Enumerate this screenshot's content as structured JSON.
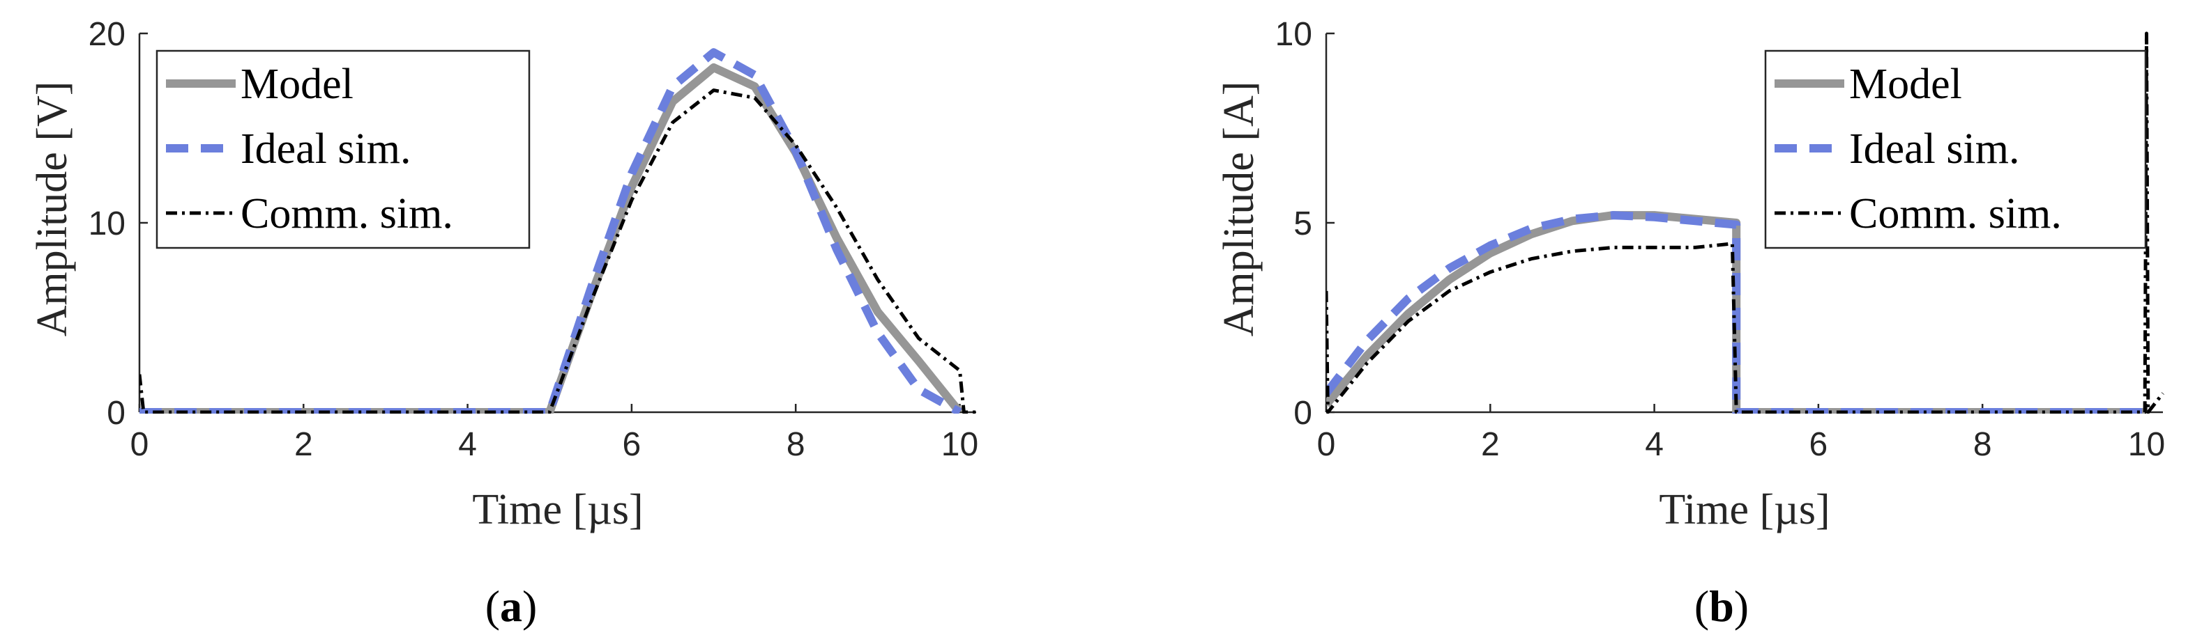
{
  "colors": {
    "model": "#969696",
    "ideal": "#6b7fdd",
    "comm": "#000000",
    "axis": "#262626"
  },
  "chart_data": [
    {
      "type": "line",
      "caption": {
        "open": "(",
        "letter": "a",
        "close": ")"
      },
      "xlabel": "Time [µs]",
      "ylabel": "Amplitude [V]",
      "xlim": [
        0,
        10.2
      ],
      "ylim": [
        0,
        20
      ],
      "xticks": [
        0,
        2,
        4,
        6,
        8,
        10
      ],
      "yticks": [
        0,
        10,
        20
      ],
      "grid": false,
      "legend_position": "top-left",
      "series": [
        {
          "name": "Model",
          "style": "solid",
          "points": [
            [
              0,
              0
            ],
            [
              5,
              0
            ],
            [
              5.5,
              6.1
            ],
            [
              6,
              11.9
            ],
            [
              6.5,
              16.4
            ],
            [
              7,
              18.2
            ],
            [
              7.5,
              17.2
            ],
            [
              8,
              13.7
            ],
            [
              8.5,
              9.2
            ],
            [
              9,
              5.3
            ],
            [
              9.5,
              2.7
            ],
            [
              10,
              0
            ]
          ]
        },
        {
          "name": "Ideal sim.",
          "style": "dashed",
          "points": [
            [
              0,
              0
            ],
            [
              5,
              0
            ],
            [
              5.5,
              6.5
            ],
            [
              6,
              12.6
            ],
            [
              6.5,
              17.2
            ],
            [
              7,
              19
            ],
            [
              7.5,
              17.8
            ],
            [
              8,
              13.8
            ],
            [
              8.5,
              8.6
            ],
            [
              9,
              4.2
            ],
            [
              9.5,
              1.2
            ],
            [
              10,
              0
            ]
          ]
        },
        {
          "name": "Comm. sim.",
          "style": "dashdot",
          "points": [
            [
              0,
              2
            ],
            [
              0.05,
              0
            ],
            [
              5,
              0
            ],
            [
              5.5,
              5.8
            ],
            [
              6,
              11.2
            ],
            [
              6.5,
              15.3
            ],
            [
              7,
              17
            ],
            [
              7.5,
              16.6
            ],
            [
              8,
              14.1
            ],
            [
              8.5,
              10.8
            ],
            [
              9,
              7
            ],
            [
              9.5,
              3.9
            ],
            [
              10,
              2.2
            ],
            [
              10.05,
              0
            ],
            [
              10.2,
              0
            ]
          ]
        }
      ]
    },
    {
      "type": "line",
      "caption": {
        "open": "(",
        "letter": "b",
        "close": ")"
      },
      "xlabel": "Time [µs]",
      "ylabel": "Amplitude [A]",
      "xlim": [
        0,
        10.2
      ],
      "ylim": [
        0,
        10
      ],
      "xticks": [
        0,
        2,
        4,
        6,
        8,
        10
      ],
      "yticks": [
        0,
        5,
        10
      ],
      "grid": false,
      "legend_position": "top-right",
      "series": [
        {
          "name": "Model",
          "style": "solid",
          "points": [
            [
              0,
              0.2
            ],
            [
              0.5,
              1.5
            ],
            [
              1,
              2.6
            ],
            [
              1.5,
              3.5
            ],
            [
              2,
              4.2
            ],
            [
              2.5,
              4.7
            ],
            [
              3,
              5.05
            ],
            [
              3.5,
              5.2
            ],
            [
              4,
              5.2
            ],
            [
              4.5,
              5.1
            ],
            [
              5,
              5
            ],
            [
              5,
              0
            ],
            [
              10,
              0
            ]
          ]
        },
        {
          "name": "Ideal sim.",
          "style": "dashed",
          "points": [
            [
              0,
              0.5
            ],
            [
              0.5,
              1.9
            ],
            [
              1,
              3
            ],
            [
              1.5,
              3.8
            ],
            [
              2,
              4.4
            ],
            [
              2.5,
              4.85
            ],
            [
              3,
              5.1
            ],
            [
              3.5,
              5.2
            ],
            [
              4,
              5.15
            ],
            [
              4.5,
              5.05
            ],
            [
              5,
              4.95
            ],
            [
              5,
              0
            ],
            [
              10,
              0
            ]
          ]
        },
        {
          "name": "Comm. sim.",
          "style": "dashdot",
          "points": [
            [
              0,
              3.2
            ],
            [
              0.02,
              0
            ],
            [
              0.5,
              1.3
            ],
            [
              1,
              2.4
            ],
            [
              1.5,
              3.2
            ],
            [
              2,
              3.7
            ],
            [
              2.5,
              4.05
            ],
            [
              3,
              4.25
            ],
            [
              3.5,
              4.35
            ],
            [
              4,
              4.35
            ],
            [
              4.5,
              4.35
            ],
            [
              4.95,
              4.45
            ],
            [
              5,
              0
            ],
            [
              9.98,
              0
            ],
            [
              10,
              10
            ],
            [
              10.02,
              0
            ],
            [
              10.2,
              0.5
            ]
          ]
        }
      ]
    }
  ]
}
